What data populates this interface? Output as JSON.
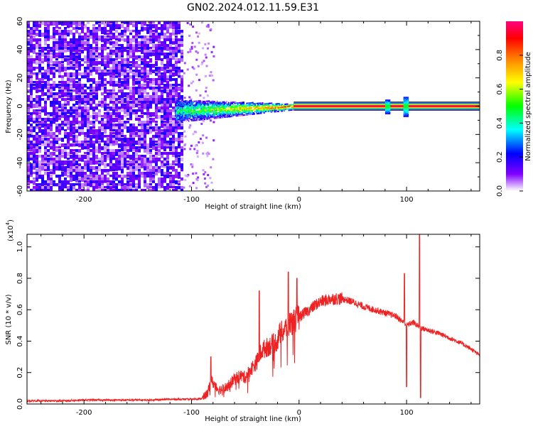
{
  "figure": {
    "title": "GN02.2024.012.11.59.E31"
  },
  "chart_data": [
    {
      "type": "heatmap",
      "title": "GN02.2024.012.11.59.E31",
      "xlabel": "Height of straight line (km)",
      "ylabel": "Frequency (Hz)",
      "xlim": [
        -253,
        168
      ],
      "ylim": [
        -60,
        60
      ],
      "x_ticks": [
        -200,
        -100,
        0,
        100
      ],
      "x_tick_labels": [
        "-200",
        "-100",
        "0",
        "100"
      ],
      "y_ticks": [
        -60,
        -40,
        -20,
        0,
        20,
        40,
        60
      ],
      "y_tick_labels": [
        "-60",
        "-40",
        "-20",
        "0",
        "20",
        "40",
        "60"
      ],
      "grid": false,
      "colorscale": "rainbow (violet to red to magenta)",
      "regions": [
        {
          "name": "noise",
          "x_range": [
            -253,
            -108
          ],
          "freq_range": [
            -60,
            60
          ],
          "amplitude": "low (0.05-0.2)"
        },
        {
          "name": "sparse noise",
          "x_range": [
            -108,
            -80
          ],
          "freq_range": [
            -60,
            60
          ],
          "amplitude": "very low"
        },
        {
          "name": "narrowing band",
          "x_range": [
            -115,
            -5
          ],
          "freq_half_width": [
            8,
            2
          ],
          "amplitude": "0.2-0.8"
        },
        {
          "name": "stable carrier",
          "x_range": [
            -5,
            168
          ],
          "freq_center": 0,
          "amplitude": "~0.9"
        },
        {
          "name": "spur near 82 km",
          "x_range": [
            80,
            84
          ],
          "freq_half_width": 5
        },
        {
          "name": "spur near 99 km",
          "x_range": [
            97,
            101
          ],
          "freq_half_width": 7
        }
      ],
      "colorbar": {
        "label": "Normalized spectral amplitude",
        "range": [
          0,
          1
        ],
        "ticks": [
          0.0,
          0.2,
          0.4,
          0.6,
          0.8
        ],
        "tick_labels": [
          "0.0",
          "0.2",
          "0.4",
          "0.6",
          "0.8"
        ],
        "colors": [
          "#ffffff",
          "#cc99ff",
          "#8000ff",
          "#0000ff",
          "#00ffff",
          "#00ff00",
          "#ffff00",
          "#ff8000",
          "#ff0000",
          "#ff0080"
        ]
      }
    },
    {
      "type": "line",
      "xlabel": "Height of straight line (km)",
      "ylabel": "SNR (10 * v/v)",
      "y_multiplier": "(x10",
      "y_multiplier_exp": "4",
      "y_multiplier_close": ")",
      "xlim": [
        -253,
        168
      ],
      "ylim": [
        0,
        1.08
      ],
      "x_ticks": [
        -200,
        -100,
        0,
        100
      ],
      "x_tick_labels": [
        "-200",
        "-100",
        "0",
        "100"
      ],
      "y_ticks": [
        0.0,
        0.2,
        0.4,
        0.6,
        0.8,
        1.0
      ],
      "y_tick_labels": [
        "0.0",
        "0.2",
        "0.4",
        "0.6",
        "0.8",
        "1.0"
      ],
      "grid": false,
      "series": [
        {
          "color": "#ee2222",
          "x": [
            -253,
            -240,
            -220,
            -200,
            -180,
            -160,
            -140,
            -120,
            -100,
            -90,
            -85,
            -82,
            -78,
            -75,
            -70,
            -65,
            -60,
            -55,
            -50,
            -45,
            -40,
            -37,
            -35,
            -30,
            -25,
            -20,
            -18,
            -15,
            -10,
            -5,
            0,
            5,
            10,
            15,
            20,
            30,
            40,
            50,
            60,
            70,
            80,
            90,
            95,
            98,
            100,
            103,
            106,
            110,
            112,
            115,
            120,
            130,
            140,
            150,
            160,
            168
          ],
          "y": [
            0.02,
            0.02,
            0.02,
            0.025,
            0.025,
            0.025,
            0.025,
            0.03,
            0.03,
            0.035,
            0.07,
            0.15,
            0.12,
            0.09,
            0.1,
            0.12,
            0.16,
            0.18,
            0.17,
            0.22,
            0.26,
            0.3,
            0.34,
            0.36,
            0.38,
            0.4,
            0.45,
            0.46,
            0.5,
            0.53,
            0.55,
            0.58,
            0.6,
            0.63,
            0.65,
            0.67,
            0.67,
            0.65,
            0.62,
            0.6,
            0.58,
            0.56,
            0.53,
            0.52,
            0.5,
            0.51,
            0.52,
            0.5,
            0.49,
            0.48,
            0.47,
            0.45,
            0.42,
            0.39,
            0.35,
            0.31
          ],
          "spikes": [
            {
              "x": -82,
              "y": 0.3
            },
            {
              "x": -37,
              "y": 0.72
            },
            {
              "x": -10,
              "y": 0.84
            },
            {
              "x": -2,
              "y": 0.8
            },
            {
              "x": 98,
              "y": 0.83
            },
            {
              "x": 100,
              "y": 0.11
            },
            {
              "x": 112,
              "y": 1.08
            },
            {
              "x": 113,
              "y": 0.04
            }
          ]
        }
      ]
    }
  ]
}
